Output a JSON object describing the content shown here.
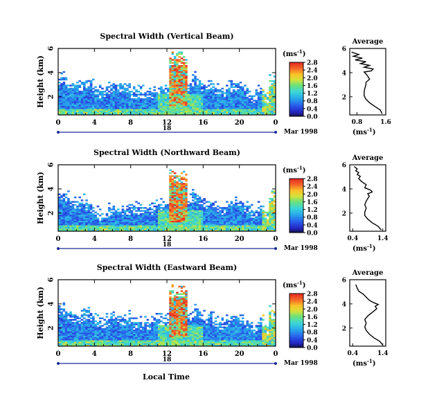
{
  "figure": {
    "xlabel": "Local Time",
    "colorbar_unit_base": "(ms",
    "colorbar_unit_exp": "-1",
    "colorbar_unit_close": ")",
    "profile_title": "Average",
    "profile_unit_base": "(ms",
    "profile_unit_exp": "-1",
    "profile_unit_close": ")",
    "date_label": "Mar 1998",
    "day_label": "18"
  },
  "chart_data": [
    {
      "type": "heatmap",
      "title": "Spectral Width (Vertical Beam)",
      "xlabel": "",
      "ylabel": "Height (km)",
      "x_ticks": [
        "0",
        "4",
        "8",
        "12",
        "16",
        "20",
        "0"
      ],
      "xlim": [
        0,
        24
      ],
      "y_ticks": [
        "2",
        "4",
        "6"
      ],
      "ylim": [
        0.5,
        6
      ],
      "colorbar_ticks": [
        "0.0",
        "0.4",
        "0.8",
        "1.2",
        "1.6",
        "2.0",
        "2.4",
        "2.8"
      ],
      "colorbar_range": [
        0,
        2.8
      ],
      "profile": {
        "title": "Average",
        "x_ticks": [
          "0.8",
          "1.6"
        ],
        "xlim": [
          0.6,
          1.6
        ],
        "y_ticks": [
          "2",
          "4",
          "6"
        ],
        "ylim": [
          0.5,
          6
        ],
        "x": [
          1.5,
          1.45,
          1.3,
          1.15,
          1.05,
          1.0,
          1.0,
          1.02,
          1.05,
          1.05,
          1.15,
          1.1,
          1.05,
          1.0,
          1.2,
          1.25,
          1.0,
          1.15,
          0.9,
          1.05,
          0.75,
          0.95,
          0.7,
          0.85,
          0.65
        ],
        "y": [
          0.6,
          0.9,
          1.2,
          1.5,
          1.8,
          2.1,
          2.4,
          2.7,
          3.0,
          3.2,
          3.45,
          3.7,
          3.9,
          4.05,
          4.15,
          4.3,
          4.45,
          4.6,
          4.75,
          4.9,
          5.05,
          5.2,
          5.35,
          5.5,
          5.7
        ]
      }
    },
    {
      "type": "heatmap",
      "title": "Spectral Width (Northward Beam)",
      "xlabel": "",
      "ylabel": "Height (km)",
      "x_ticks": [
        "0",
        "4",
        "8",
        "12",
        "16",
        "20",
        "0"
      ],
      "xlim": [
        0,
        24
      ],
      "y_ticks": [
        "2",
        "4",
        "6"
      ],
      "ylim": [
        0.5,
        6
      ],
      "colorbar_ticks": [
        "0.0",
        "0.4",
        "0.8",
        "1.2",
        "1.6",
        "2.0",
        "2.4",
        "2.8"
      ],
      "colorbar_range": [
        0,
        2.8
      ],
      "profile": {
        "title": "Average",
        "x_ticks": [
          "0.4",
          "1.4"
        ],
        "xlim": [
          0.3,
          1.5
        ],
        "y_ticks": [
          "2",
          "4",
          "6"
        ],
        "ylim": [
          0.5,
          6
        ],
        "x": [
          1.35,
          1.25,
          1.05,
          0.9,
          0.8,
          0.8,
          0.85,
          0.8,
          0.85,
          0.9,
          0.95,
          0.9,
          1.05,
          1.0,
          0.8,
          0.85,
          0.7,
          0.6,
          0.65,
          0.55,
          0.6,
          0.5,
          0.55,
          0.45
        ],
        "y": [
          0.6,
          0.9,
          1.2,
          1.5,
          1.8,
          2.1,
          2.4,
          2.7,
          3.0,
          3.2,
          3.4,
          3.6,
          3.75,
          3.9,
          4.1,
          4.35,
          4.6,
          4.85,
          5.05,
          5.2,
          5.35,
          5.5,
          5.65,
          5.85
        ]
      }
    },
    {
      "type": "heatmap",
      "title": "Spectral Width (Eastward Beam)",
      "xlabel": "Local Time",
      "ylabel": "Height (km)",
      "x_ticks": [
        "0",
        "4",
        "8",
        "12",
        "16",
        "20",
        "0"
      ],
      "xlim": [
        0,
        24
      ],
      "y_ticks": [
        "2",
        "4",
        "6"
      ],
      "ylim": [
        0.5,
        6
      ],
      "colorbar_ticks": [
        "0.0",
        "0.4",
        "0.8",
        "1.2",
        "1.6",
        "2.0",
        "2.4",
        "2.8"
      ],
      "colorbar_range": [
        0,
        2.8
      ],
      "profile": {
        "title": "Average",
        "x_ticks": [
          "0.4",
          "1.4"
        ],
        "xlim": [
          0.3,
          1.5
        ],
        "y_ticks": [
          "2",
          "4",
          "6"
        ],
        "ylim": [
          0.5,
          6
        ],
        "x": [
          1.4,
          1.3,
          1.1,
          0.95,
          0.85,
          0.8,
          0.85,
          0.8,
          0.9,
          1.0,
          1.1,
          1.2,
          1.15,
          1.25,
          1.1,
          0.95,
          0.85,
          0.75,
          0.6,
          0.55,
          0.5
        ],
        "y": [
          0.6,
          0.9,
          1.2,
          1.5,
          1.8,
          2.1,
          2.4,
          2.7,
          3.0,
          3.2,
          3.4,
          3.6,
          3.8,
          3.95,
          4.1,
          4.3,
          4.55,
          4.8,
          5.05,
          5.3,
          5.6
        ]
      }
    }
  ]
}
